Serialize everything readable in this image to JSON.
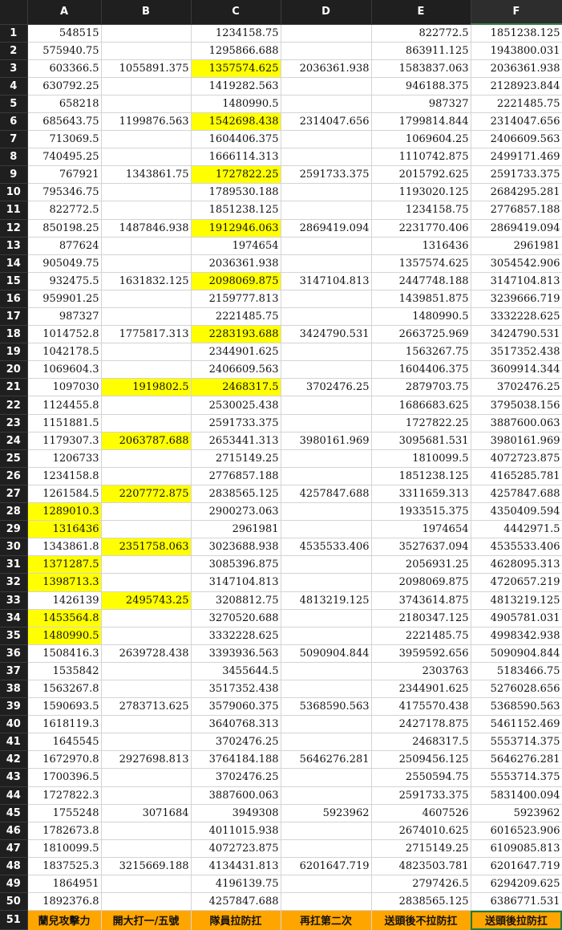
{
  "sheet": {
    "columns": [
      "A",
      "B",
      "C",
      "D",
      "E",
      "F"
    ],
    "selected_column": "F",
    "highlight_color": "#ffff00",
    "label_color": "#ffa500",
    "rows": [
      {
        "n": "1",
        "cells": [
          "548515",
          "",
          "1234158.75",
          "",
          "822772.5",
          "1851238.125"
        ],
        "hl": []
      },
      {
        "n": "2",
        "cells": [
          "575940.75",
          "",
          "1295866.688",
          "",
          "863911.125",
          "1943800.031"
        ],
        "hl": []
      },
      {
        "n": "3",
        "cells": [
          "603366.5",
          "1055891.375",
          "1357574.625",
          "2036361.938",
          "1583837.063",
          "2036361.938"
        ],
        "hl": [
          2
        ]
      },
      {
        "n": "4",
        "cells": [
          "630792.25",
          "",
          "1419282.563",
          "",
          "946188.375",
          "2128923.844"
        ],
        "hl": []
      },
      {
        "n": "5",
        "cells": [
          "658218",
          "",
          "1480990.5",
          "",
          "987327",
          "2221485.75"
        ],
        "hl": []
      },
      {
        "n": "6",
        "cells": [
          "685643.75",
          "1199876.563",
          "1542698.438",
          "2314047.656",
          "1799814.844",
          "2314047.656"
        ],
        "hl": [
          2
        ]
      },
      {
        "n": "7",
        "cells": [
          "713069.5",
          "",
          "1604406.375",
          "",
          "1069604.25",
          "2406609.563"
        ],
        "hl": []
      },
      {
        "n": "8",
        "cells": [
          "740495.25",
          "",
          "1666114.313",
          "",
          "1110742.875",
          "2499171.469"
        ],
        "hl": []
      },
      {
        "n": "9",
        "cells": [
          "767921",
          "1343861.75",
          "1727822.25",
          "2591733.375",
          "2015792.625",
          "2591733.375"
        ],
        "hl": [
          2
        ]
      },
      {
        "n": "10",
        "cells": [
          "795346.75",
          "",
          "1789530.188",
          "",
          "1193020.125",
          "2684295.281"
        ],
        "hl": []
      },
      {
        "n": "11",
        "cells": [
          "822772.5",
          "",
          "1851238.125",
          "",
          "1234158.75",
          "2776857.188"
        ],
        "hl": []
      },
      {
        "n": "12",
        "cells": [
          "850198.25",
          "1487846.938",
          "1912946.063",
          "2869419.094",
          "2231770.406",
          "2869419.094"
        ],
        "hl": [
          2
        ]
      },
      {
        "n": "13",
        "cells": [
          "877624",
          "",
          "1974654",
          "",
          "1316436",
          "2961981"
        ],
        "hl": []
      },
      {
        "n": "14",
        "cells": [
          "905049.75",
          "",
          "2036361.938",
          "",
          "1357574.625",
          "3054542.906"
        ],
        "hl": []
      },
      {
        "n": "15",
        "cells": [
          "932475.5",
          "1631832.125",
          "2098069.875",
          "3147104.813",
          "2447748.188",
          "3147104.813"
        ],
        "hl": [
          2
        ]
      },
      {
        "n": "16",
        "cells": [
          "959901.25",
          "",
          "2159777.813",
          "",
          "1439851.875",
          "3239666.719"
        ],
        "hl": []
      },
      {
        "n": "17",
        "cells": [
          "987327",
          "",
          "2221485.75",
          "",
          "1480990.5",
          "3332228.625"
        ],
        "hl": []
      },
      {
        "n": "18",
        "cells": [
          "1014752.8",
          "1775817.313",
          "2283193.688",
          "3424790.531",
          "2663725.969",
          "3424790.531"
        ],
        "hl": [
          2
        ]
      },
      {
        "n": "19",
        "cells": [
          "1042178.5",
          "",
          "2344901.625",
          "",
          "1563267.75",
          "3517352.438"
        ],
        "hl": []
      },
      {
        "n": "20",
        "cells": [
          "1069604.3",
          "",
          "2406609.563",
          "",
          "1604406.375",
          "3609914.344"
        ],
        "hl": []
      },
      {
        "n": "21",
        "cells": [
          "1097030",
          "1919802.5",
          "2468317.5",
          "3702476.25",
          "2879703.75",
          "3702476.25"
        ],
        "hl": [
          1,
          2
        ]
      },
      {
        "n": "22",
        "cells": [
          "1124455.8",
          "",
          "2530025.438",
          "",
          "1686683.625",
          "3795038.156"
        ],
        "hl": []
      },
      {
        "n": "23",
        "cells": [
          "1151881.5",
          "",
          "2591733.375",
          "",
          "1727822.25",
          "3887600.063"
        ],
        "hl": []
      },
      {
        "n": "24",
        "cells": [
          "1179307.3",
          "2063787.688",
          "2653441.313",
          "3980161.969",
          "3095681.531",
          "3980161.969"
        ],
        "hl": [
          1
        ]
      },
      {
        "n": "25",
        "cells": [
          "1206733",
          "",
          "2715149.25",
          "",
          "1810099.5",
          "4072723.875"
        ],
        "hl": []
      },
      {
        "n": "26",
        "cells": [
          "1234158.8",
          "",
          "2776857.188",
          "",
          "1851238.125",
          "4165285.781"
        ],
        "hl": []
      },
      {
        "n": "27",
        "cells": [
          "1261584.5",
          "2207772.875",
          "2838565.125",
          "4257847.688",
          "3311659.313",
          "4257847.688"
        ],
        "hl": [
          1
        ]
      },
      {
        "n": "28",
        "cells": [
          "1289010.3",
          "",
          "2900273.063",
          "",
          "1933515.375",
          "4350409.594"
        ],
        "hl": [
          0
        ]
      },
      {
        "n": "29",
        "cells": [
          "1316436",
          "",
          "2961981",
          "",
          "1974654",
          "4442971.5"
        ],
        "hl": [
          0
        ]
      },
      {
        "n": "30",
        "cells": [
          "1343861.8",
          "2351758.063",
          "3023688.938",
          "4535533.406",
          "3527637.094",
          "4535533.406"
        ],
        "hl": [
          1
        ]
      },
      {
        "n": "31",
        "cells": [
          "1371287.5",
          "",
          "3085396.875",
          "",
          "2056931.25",
          "4628095.313"
        ],
        "hl": [
          0
        ]
      },
      {
        "n": "32",
        "cells": [
          "1398713.3",
          "",
          "3147104.813",
          "",
          "2098069.875",
          "4720657.219"
        ],
        "hl": [
          0
        ]
      },
      {
        "n": "33",
        "cells": [
          "1426139",
          "2495743.25",
          "3208812.75",
          "4813219.125",
          "3743614.875",
          "4813219.125"
        ],
        "hl": [
          1
        ]
      },
      {
        "n": "34",
        "cells": [
          "1453564.8",
          "",
          "3270520.688",
          "",
          "2180347.125",
          "4905781.031"
        ],
        "hl": [
          0
        ]
      },
      {
        "n": "35",
        "cells": [
          "1480990.5",
          "",
          "3332228.625",
          "",
          "2221485.75",
          "4998342.938"
        ],
        "hl": [
          0
        ]
      },
      {
        "n": "36",
        "cells": [
          "1508416.3",
          "2639728.438",
          "3393936.563",
          "5090904.844",
          "3959592.656",
          "5090904.844"
        ],
        "hl": []
      },
      {
        "n": "37",
        "cells": [
          "1535842",
          "",
          "3455644.5",
          "",
          "2303763",
          "5183466.75"
        ],
        "hl": []
      },
      {
        "n": "38",
        "cells": [
          "1563267.8",
          "",
          "3517352.438",
          "",
          "2344901.625",
          "5276028.656"
        ],
        "hl": []
      },
      {
        "n": "39",
        "cells": [
          "1590693.5",
          "2783713.625",
          "3579060.375",
          "5368590.563",
          "4175570.438",
          "5368590.563"
        ],
        "hl": []
      },
      {
        "n": "40",
        "cells": [
          "1618119.3",
          "",
          "3640768.313",
          "",
          "2427178.875",
          "5461152.469"
        ],
        "hl": []
      },
      {
        "n": "41",
        "cells": [
          "1645545",
          "",
          "3702476.25",
          "",
          "2468317.5",
          "5553714.375"
        ],
        "hl": []
      },
      {
        "n": "42",
        "cells": [
          "1672970.8",
          "2927698.813",
          "3764184.188",
          "5646276.281",
          "2509456.125",
          "5646276.281"
        ],
        "hl": []
      },
      {
        "n": "43",
        "cells": [
          "1700396.5",
          "",
          "3702476.25",
          "",
          "2550594.75",
          "5553714.375"
        ],
        "hl": []
      },
      {
        "n": "44",
        "cells": [
          "1727822.3",
          "",
          "3887600.063",
          "",
          "2591733.375",
          "5831400.094"
        ],
        "hl": []
      },
      {
        "n": "45",
        "cells": [
          "1755248",
          "3071684",
          "3949308",
          "5923962",
          "4607526",
          "5923962"
        ],
        "hl": []
      },
      {
        "n": "46",
        "cells": [
          "1782673.8",
          "",
          "4011015.938",
          "",
          "2674010.625",
          "6016523.906"
        ],
        "hl": []
      },
      {
        "n": "47",
        "cells": [
          "1810099.5",
          "",
          "4072723.875",
          "",
          "2715149.25",
          "6109085.813"
        ],
        "hl": []
      },
      {
        "n": "48",
        "cells": [
          "1837525.3",
          "3215669.188",
          "4134431.813",
          "6201647.719",
          "4823503.781",
          "6201647.719"
        ],
        "hl": []
      },
      {
        "n": "49",
        "cells": [
          "1864951",
          "",
          "4196139.75",
          "",
          "2797426.5",
          "6294209.625"
        ],
        "hl": []
      },
      {
        "n": "50",
        "cells": [
          "1892376.8",
          "",
          "4257847.688",
          "",
          "2838565.125",
          "6386771.531"
        ],
        "hl": []
      }
    ],
    "label_row": {
      "n": "51",
      "cells": [
        "蘭兒攻擊力",
        "開大打一/五號",
        "隊員拉防扛",
        "再扛第二次",
        "送頭後不拉防扛",
        "送頭後拉防扛"
      ]
    }
  }
}
